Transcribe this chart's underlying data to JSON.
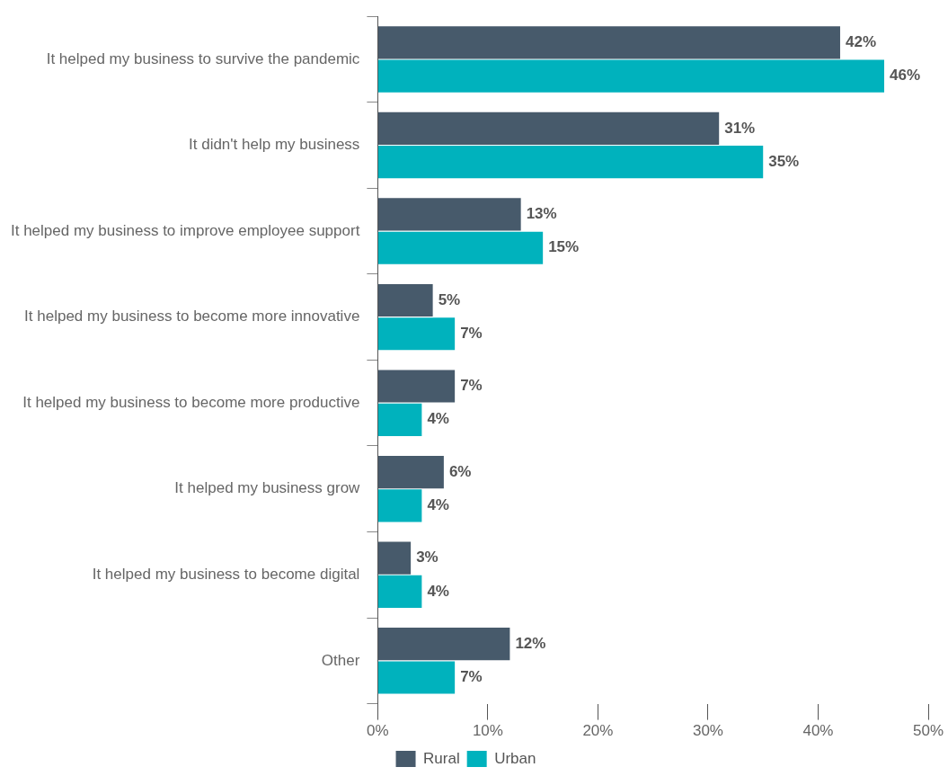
{
  "chart_data": {
    "type": "bar",
    "orientation": "horizontal",
    "categories": [
      "It helped my business to survive the pandemic",
      "It didn't help my business",
      "It helped my business to improve employee support",
      "It helped my business to become more innovative",
      "It helped my business to become more productive",
      "It helped my business grow",
      "It helped my business to become digital",
      "Other"
    ],
    "series": [
      {
        "name": "Rural",
        "color": "#475a6b",
        "values": [
          42,
          31,
          13,
          5,
          7,
          6,
          3,
          12
        ],
        "value_labels": [
          "42%",
          "31%",
          "13%",
          "5%",
          "7%",
          "6%",
          "3%",
          "12%"
        ]
      },
      {
        "name": "Urban",
        "color": "#00b2bd",
        "values": [
          46,
          35,
          15,
          7,
          4,
          4,
          4,
          7
        ],
        "value_labels": [
          "46%",
          "35%",
          "15%",
          "7%",
          "4%",
          "4%",
          "4%",
          "7%"
        ]
      }
    ],
    "xlim": [
      0,
      50
    ],
    "xticks": [
      {
        "value": 0,
        "label": "0%"
      },
      {
        "value": 10,
        "label": "10%"
      },
      {
        "value": 20,
        "label": "20%"
      },
      {
        "value": 30,
        "label": "30%"
      },
      {
        "value": 40,
        "label": "40%"
      },
      {
        "value": 50,
        "label": "50%"
      }
    ],
    "grid": false,
    "legend": "bottom"
  }
}
